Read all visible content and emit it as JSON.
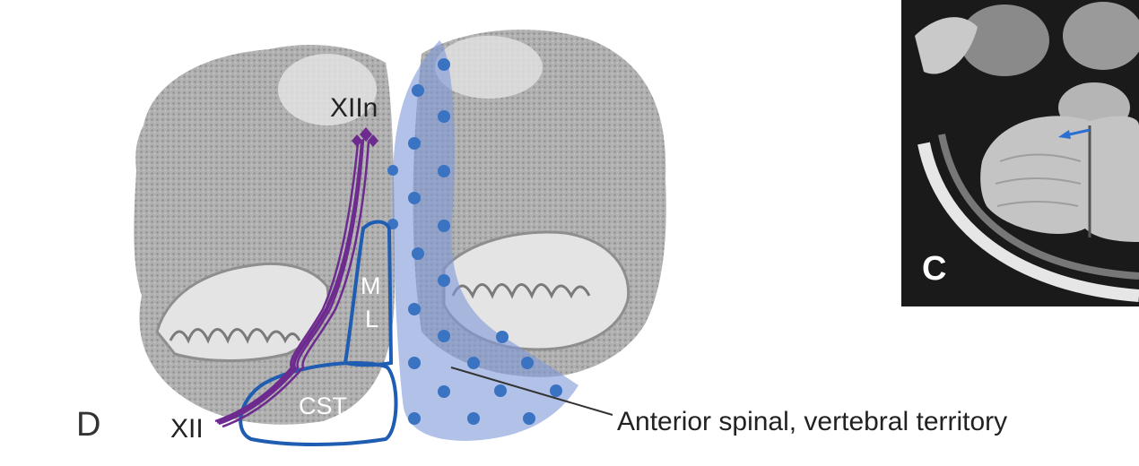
{
  "figure": {
    "panel_d_label": "D",
    "panel_c_label": "C",
    "labels": {
      "hypoglossal_nucleus": "XIIn",
      "hypoglossal_nerve": "XII",
      "medial_lemniscus_top": "M",
      "medial_lemniscus_bottom": "L",
      "corticospinal_tract": "CST",
      "territory_callout": "Anterior spinal, vertebral territory"
    },
    "colors": {
      "tissue": "#a6a6a6",
      "tissue_light": "#d9d9d9",
      "territory_fill": "#7f98d8",
      "territory_dot": "#3a73c2",
      "outline_blue": "#1f5db3",
      "nerve_purple": "#6e2b8f",
      "mri_bg": "#1a1a1a",
      "mri_arrow": "#2a6fd1"
    },
    "icons": {
      "mri_arrow": "arrow-icon"
    }
  }
}
